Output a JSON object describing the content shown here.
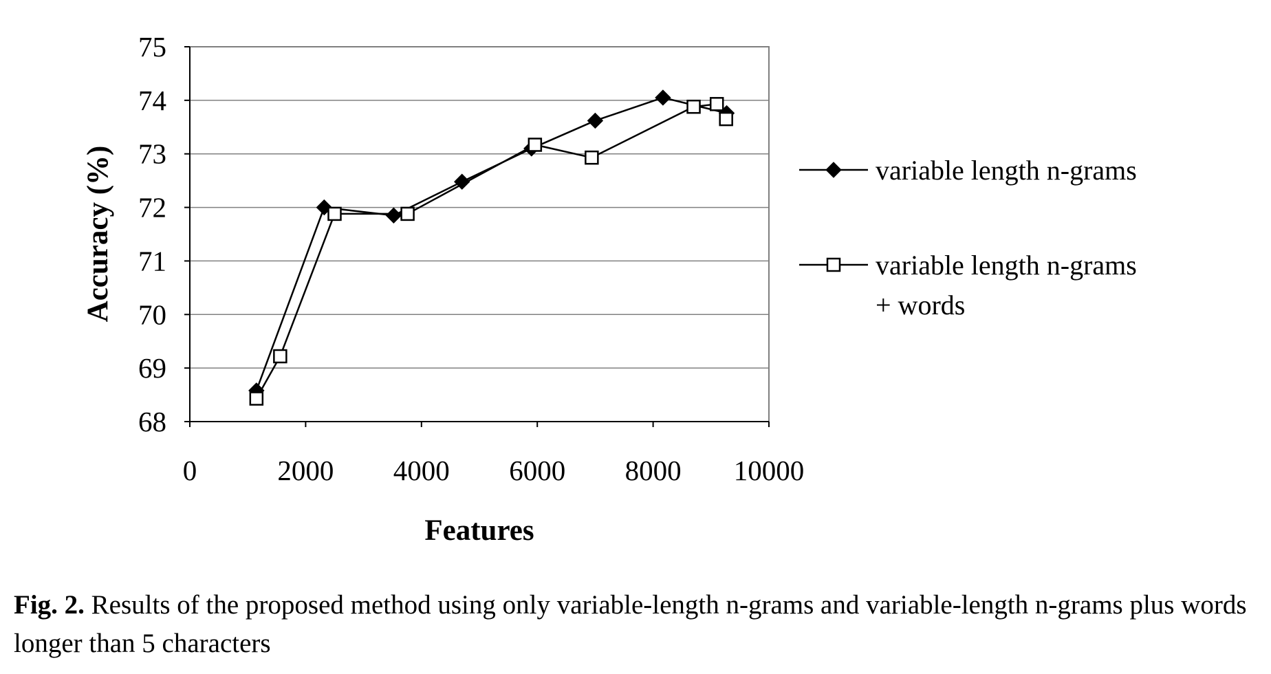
{
  "chart_data": {
    "type": "line",
    "xlabel": "Features",
    "ylabel": "Accuracy (%)",
    "xlim": [
      0,
      10000
    ],
    "ylim": [
      68,
      75
    ],
    "xticks": [
      0,
      2000,
      4000,
      6000,
      8000,
      10000
    ],
    "yticks": [
      68,
      69,
      70,
      71,
      72,
      73,
      74,
      75
    ],
    "grid": "horizontal",
    "legend_position": "right",
    "series": [
      {
        "name": "variable length n-grams",
        "marker": "filled-diamond",
        "color": "#000000",
        "x": [
          1150,
          2320,
          3520,
          4700,
          5900,
          7000,
          8170,
          9270
        ],
        "y": [
          68.58,
          72.0,
          71.85,
          72.48,
          73.1,
          73.62,
          74.05,
          73.76
        ]
      },
      {
        "name": "variable length n-grams + words",
        "marker": "open-square",
        "color": "#000000",
        "x": [
          1150,
          1560,
          2500,
          3760,
          5960,
          6940,
          8700,
          9100,
          9260
        ],
        "y": [
          68.43,
          69.22,
          71.88,
          71.88,
          73.17,
          72.93,
          73.88,
          73.93,
          73.65
        ]
      }
    ]
  },
  "legend": {
    "entries": [
      {
        "lines": [
          "variable length n-grams"
        ]
      },
      {
        "lines": [
          "variable length n-grams",
          "+ words"
        ]
      }
    ]
  },
  "caption": {
    "label": "Fig. 2.",
    "text": " Results of the proposed method using only variable-length n-grams and variable-length n-grams plus words longer than 5 characters"
  }
}
